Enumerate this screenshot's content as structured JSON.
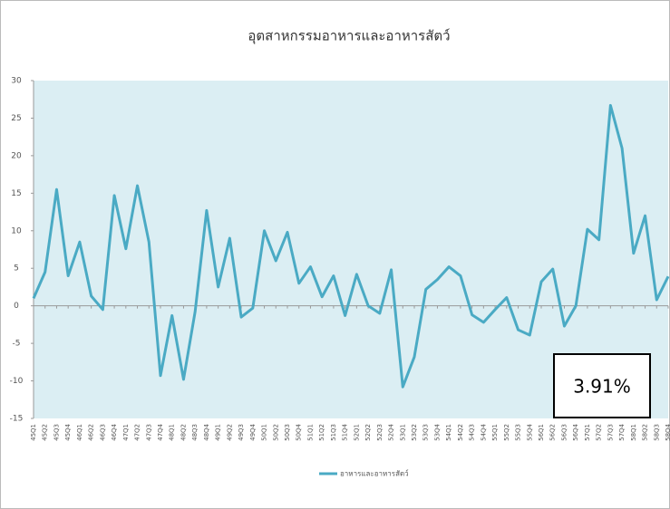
{
  "chart_data": {
    "type": "line",
    "title": "อุตสาหกรรมอาหารและอาหารสัตว์",
    "categories": [
      "45Q1",
      "45Q2",
      "45Q3",
      "45Q4",
      "46Q1",
      "46Q2",
      "46Q3",
      "46Q4",
      "47Q1",
      "47Q2",
      "47Q3",
      "47Q4",
      "48Q1",
      "48Q2",
      "48Q3",
      "48Q4",
      "49Q1",
      "49Q2",
      "49Q3",
      "49Q4",
      "50Q1",
      "50Q2",
      "50Q3",
      "50Q4",
      "51Q1",
      "51Q2",
      "51Q3",
      "51Q4",
      "52Q1",
      "52Q2",
      "52Q3",
      "52Q4",
      "53Q1",
      "53Q2",
      "53Q3",
      "53Q4",
      "54Q1",
      "54Q2",
      "54Q3",
      "54Q4",
      "55Q1",
      "55Q2",
      "55Q3",
      "55Q4",
      "56Q1",
      "56Q2",
      "56Q3",
      "56Q4",
      "57Q1",
      "57Q2",
      "57Q3",
      "57Q4",
      "58Q1",
      "58Q2",
      "58Q3",
      "58Q4"
    ],
    "series": [
      {
        "name": "อาหารและอาหารสัตว์",
        "color": "#4aaac4",
        "values": [
          1,
          4.5,
          15.5,
          4,
          8.5,
          1.3,
          -0.5,
          14.7,
          7.6,
          16,
          8.5,
          -9.3,
          -1.3,
          -9.8,
          -0.8,
          12.7,
          2.5,
          9,
          -1.5,
          -0.3,
          10,
          6,
          9.8,
          3,
          5.2,
          1.2,
          4,
          -1.3,
          4.2,
          0,
          -1,
          4.8,
          -10.8,
          -6.8,
          2.2,
          3.5,
          5.2,
          4,
          -1.2,
          -2.2,
          -0.5,
          1.1,
          -3.2,
          -3.9,
          3.2,
          4.9,
          -2.7,
          0,
          10.2,
          8.8,
          26.7,
          21,
          7,
          12,
          0.8,
          3.91
        ]
      }
    ],
    "ylim": [
      -15,
      30
    ],
    "yticks": [
      -15,
      -10,
      -5,
      0,
      5,
      10,
      15,
      20,
      25,
      30
    ],
    "annotation": "3.91%",
    "plot_background": "#dbeef3",
    "legend": "bottom"
  }
}
